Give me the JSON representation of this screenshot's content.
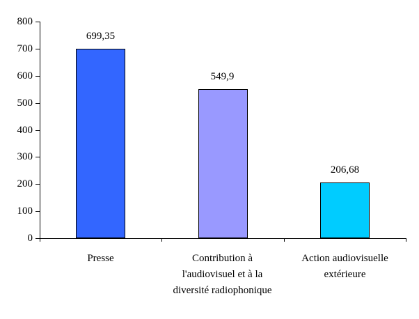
{
  "chart_data": {
    "type": "bar",
    "title": "",
    "xlabel": "",
    "ylabel": "",
    "categories": [
      "Presse",
      "Contribution à\nl'audiovisuel et à la\ndiversité radiophonique",
      "Action audiovisuelle\nextérieure"
    ],
    "values": [
      699.35,
      549.9,
      206.68
    ],
    "value_labels": [
      "699,35",
      "549,9",
      "206,68"
    ],
    "bar_colors": [
      "#3366ff",
      "#9999ff",
      "#00ccff"
    ],
    "bar_border_color": "#000000",
    "axis_color": "#000000",
    "background_color": "#ffffff",
    "ylim": [
      0,
      800
    ],
    "ytick_interval": 100,
    "ytick_labels": [
      "0",
      "100",
      "200",
      "300",
      "400",
      "500",
      "600",
      "700",
      "800"
    ],
    "grid": false,
    "legend": false
  }
}
